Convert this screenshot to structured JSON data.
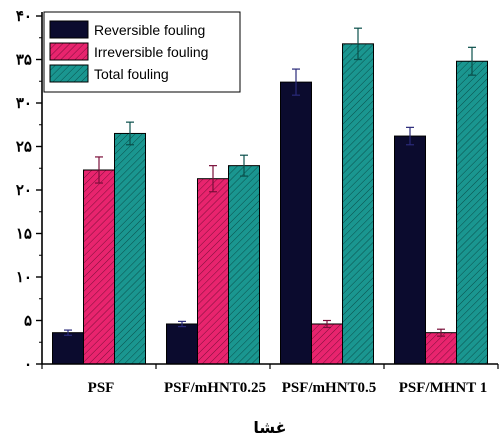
{
  "chart_data": {
    "type": "bar",
    "xlabel": "غشا",
    "ylabel": "",
    "ylim": [
      0,
      40
    ],
    "yticks": [
      0,
      5,
      10,
      15,
      20,
      25,
      30,
      35,
      40
    ],
    "ytick_labels": [
      "۰",
      "۵",
      "۱۰",
      "۱۵",
      "۲۰",
      "۲۵",
      "۳۰",
      "۳۵",
      "۴۰"
    ],
    "categories": [
      "PSF",
      "PSF/mHNT0.25",
      "PSF/mHNT0.5",
      "PSF/MHNT 1"
    ],
    "legend_position": "top-left",
    "grid": false,
    "series": [
      {
        "name": "Reversible fouling",
        "color": "#0b0b2e",
        "pattern": "solid",
        "values": [
          3.6,
          4.6,
          32.4,
          26.2
        ],
        "errors": [
          0.3,
          0.3,
          1.5,
          1.0
        ]
      },
      {
        "name": "Irreversible fouling",
        "color": "#e8246e",
        "pattern": "hatch",
        "values": [
          22.3,
          21.3,
          4.6,
          3.6
        ],
        "errors": [
          1.5,
          1.5,
          0.4,
          0.4
        ]
      },
      {
        "name": "Total fouling",
        "color": "#1a9690",
        "pattern": "hatch",
        "values": [
          26.5,
          22.8,
          36.8,
          34.8
        ],
        "errors": [
          1.3,
          1.2,
          1.8,
          1.6
        ]
      }
    ]
  }
}
